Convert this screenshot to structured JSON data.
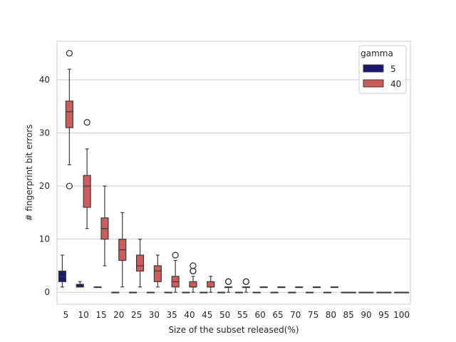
{
  "chart_data": {
    "type": "box",
    "xlabel": "Size of the subset released(%)",
    "ylabel": "# fingerprint bit errors",
    "categories": [
      "5",
      "10",
      "15",
      "20",
      "25",
      "30",
      "35",
      "40",
      "45",
      "50",
      "55",
      "60",
      "65",
      "70",
      "75",
      "80",
      "85",
      "90",
      "95",
      "100"
    ],
    "y_ticks": [
      0,
      10,
      20,
      30,
      40
    ],
    "ylim": [
      -2.25,
      47.25
    ],
    "grid": "horizontal",
    "legend": {
      "title": "gamma",
      "placement": "top-right"
    },
    "series": [
      {
        "name": "5",
        "color": "#191970",
        "boxes": [
          {
            "category": "5",
            "min": 1,
            "q1": 2,
            "median": 3,
            "q3": 4,
            "max": 7,
            "outliers": []
          },
          {
            "category": "10",
            "min": 1,
            "q1": 1,
            "median": 1,
            "q3": 1.5,
            "max": 2,
            "outliers": []
          },
          {
            "category": "15",
            "min": 1,
            "q1": 1,
            "median": 1,
            "q3": 1,
            "max": 1,
            "outliers": []
          },
          {
            "category": "20",
            "min": 0,
            "q1": 0,
            "median": 0,
            "q3": 0,
            "max": 0,
            "outliers": []
          },
          {
            "category": "25",
            "min": 0,
            "q1": 0,
            "median": 0,
            "q3": 0,
            "max": 0,
            "outliers": []
          },
          {
            "category": "30",
            "min": 0,
            "q1": 0,
            "median": 0,
            "q3": 0,
            "max": 0,
            "outliers": []
          },
          {
            "category": "35",
            "min": 0,
            "q1": 0,
            "median": 0,
            "q3": 0,
            "max": 0,
            "outliers": []
          },
          {
            "category": "40",
            "min": 0,
            "q1": 0,
            "median": 0,
            "q3": 0,
            "max": 0,
            "outliers": []
          },
          {
            "category": "45",
            "min": 0,
            "q1": 0,
            "median": 0,
            "q3": 0,
            "max": 0,
            "outliers": []
          },
          {
            "category": "50",
            "min": 0,
            "q1": 0,
            "median": 0,
            "q3": 0,
            "max": 0,
            "outliers": []
          },
          {
            "category": "55",
            "min": 0,
            "q1": 0,
            "median": 0,
            "q3": 0,
            "max": 0,
            "outliers": []
          },
          {
            "category": "60",
            "min": 0,
            "q1": 0,
            "median": 0,
            "q3": 0,
            "max": 0,
            "outliers": []
          },
          {
            "category": "65",
            "min": 0,
            "q1": 0,
            "median": 0,
            "q3": 0,
            "max": 0,
            "outliers": []
          },
          {
            "category": "70",
            "min": 0,
            "q1": 0,
            "median": 0,
            "q3": 0,
            "max": 0,
            "outliers": []
          },
          {
            "category": "75",
            "min": 0,
            "q1": 0,
            "median": 0,
            "q3": 0,
            "max": 0,
            "outliers": []
          },
          {
            "category": "80",
            "min": 0,
            "q1": 0,
            "median": 0,
            "q3": 0,
            "max": 0,
            "outliers": []
          },
          {
            "category": "85",
            "min": 0,
            "q1": 0,
            "median": 0,
            "q3": 0,
            "max": 0,
            "outliers": []
          },
          {
            "category": "90",
            "min": 0,
            "q1": 0,
            "median": 0,
            "q3": 0,
            "max": 0,
            "outliers": []
          },
          {
            "category": "95",
            "min": 0,
            "q1": 0,
            "median": 0,
            "q3": 0,
            "max": 0,
            "outliers": []
          },
          {
            "category": "100",
            "min": 0,
            "q1": 0,
            "median": 0,
            "q3": 0,
            "max": 0,
            "outliers": []
          }
        ]
      },
      {
        "name": "40",
        "color": "#cd5c5c",
        "boxes": [
          {
            "category": "5",
            "min": 24,
            "q1": 31,
            "median": 34,
            "q3": 36,
            "max": 42,
            "outliers": [
              45,
              20
            ]
          },
          {
            "category": "10",
            "min": 12,
            "q1": 16,
            "median": 20,
            "q3": 22,
            "max": 27,
            "outliers": [
              32
            ]
          },
          {
            "category": "15",
            "min": 5,
            "q1": 10,
            "median": 12,
            "q3": 14,
            "max": 20,
            "outliers": []
          },
          {
            "category": "20",
            "min": 1,
            "q1": 6,
            "median": 8,
            "q3": 10,
            "max": 15,
            "outliers": []
          },
          {
            "category": "25",
            "min": 1,
            "q1": 4,
            "median": 5,
            "q3": 7,
            "max": 10,
            "outliers": []
          },
          {
            "category": "30",
            "min": 1,
            "q1": 2,
            "median": 4,
            "q3": 5,
            "max": 7,
            "outliers": []
          },
          {
            "category": "35",
            "min": 0,
            "q1": 1,
            "median": 2,
            "q3": 3,
            "max": 6,
            "outliers": [
              7
            ]
          },
          {
            "category": "40",
            "min": 0,
            "q1": 1,
            "median": 1,
            "q3": 2,
            "max": 3,
            "outliers": [
              4,
              4,
              5
            ]
          },
          {
            "category": "45",
            "min": 0,
            "q1": 1,
            "median": 1,
            "q3": 2,
            "max": 3,
            "outliers": []
          },
          {
            "category": "50",
            "min": 0,
            "q1": 1,
            "median": 1,
            "q3": 1,
            "max": 1,
            "outliers": [
              2,
              2
            ]
          },
          {
            "category": "55",
            "min": 0,
            "q1": 1,
            "median": 1,
            "q3": 1,
            "max": 1,
            "outliers": [
              2,
              2
            ]
          },
          {
            "category": "60",
            "min": 1,
            "q1": 1,
            "median": 1,
            "q3": 1,
            "max": 1,
            "outliers": []
          },
          {
            "category": "65",
            "min": 1,
            "q1": 1,
            "median": 1,
            "q3": 1,
            "max": 1,
            "outliers": []
          },
          {
            "category": "70",
            "min": 1,
            "q1": 1,
            "median": 1,
            "q3": 1,
            "max": 1,
            "outliers": []
          },
          {
            "category": "75",
            "min": 1,
            "q1": 1,
            "median": 1,
            "q3": 1,
            "max": 1,
            "outliers": []
          },
          {
            "category": "80",
            "min": 1,
            "q1": 1,
            "median": 1,
            "q3": 1,
            "max": 1,
            "outliers": []
          },
          {
            "category": "85",
            "min": 0,
            "q1": 0,
            "median": 0,
            "q3": 0,
            "max": 0,
            "outliers": []
          },
          {
            "category": "90",
            "min": 0,
            "q1": 0,
            "median": 0,
            "q3": 0,
            "max": 0,
            "outliers": []
          },
          {
            "category": "95",
            "min": 0,
            "q1": 0,
            "median": 0,
            "q3": 0,
            "max": 0,
            "outliers": []
          },
          {
            "category": "100",
            "min": 0,
            "q1": 0,
            "median": 0,
            "q3": 0,
            "max": 0,
            "outliers": []
          }
        ]
      }
    ]
  }
}
